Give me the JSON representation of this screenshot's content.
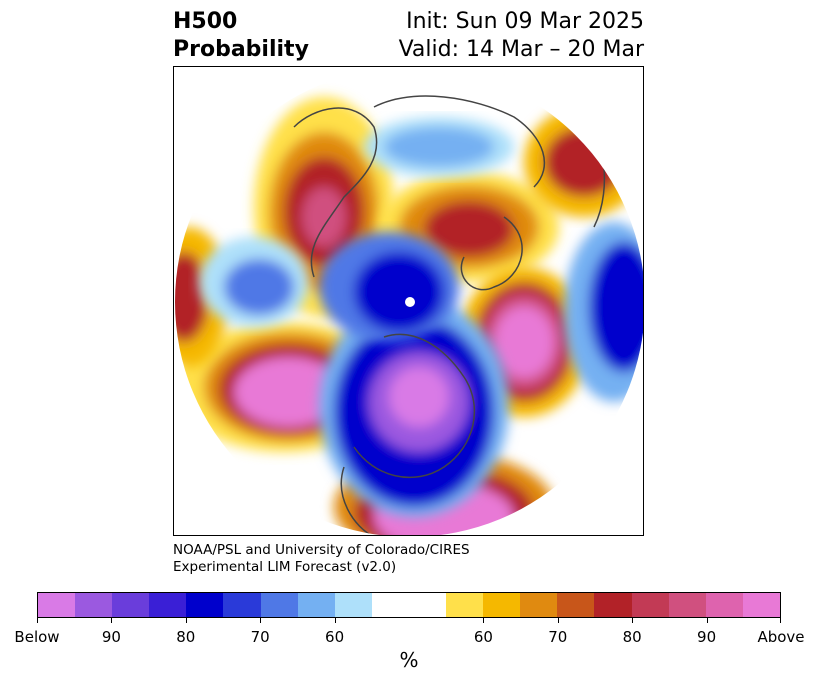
{
  "header": {
    "title_line1": "H500",
    "title_line2": "Probability",
    "init": "Init: Sun 09 Mar 2025",
    "valid": "Valid: 14 Mar – 20 Mar"
  },
  "credit": {
    "line1": "NOAA/PSL and University of Colorado/CIRES",
    "line2": "Experimental LIM Forecast (v2.0)"
  },
  "colorbar": {
    "colors": [
      "#d97ae6",
      "#9b59e0",
      "#6a3ddb",
      "#3a1fd6",
      "#0000cc",
      "#2a3ad9",
      "#4f78e6",
      "#74b0f2",
      "#aee0fa",
      "#ffffff",
      "#ffffff",
      "#ffe04a",
      "#f5b800",
      "#e08a10",
      "#c8561a",
      "#b22228",
      "#c23a55",
      "#d0507f",
      "#de63ae",
      "#e879d6"
    ],
    "tick_labels": [
      "Below",
      "90",
      "80",
      "70",
      "60",
      "60",
      "70",
      "80",
      "90",
      "Above"
    ],
    "unit": "%"
  },
  "map_colors": {
    "above_high": "#e879d6",
    "above_mid": "#b22228",
    "above_low": "#f5b800",
    "below_low": "#74b0f2",
    "below_mid": "#0000cc",
    "below_high": "#9b59e0"
  }
}
